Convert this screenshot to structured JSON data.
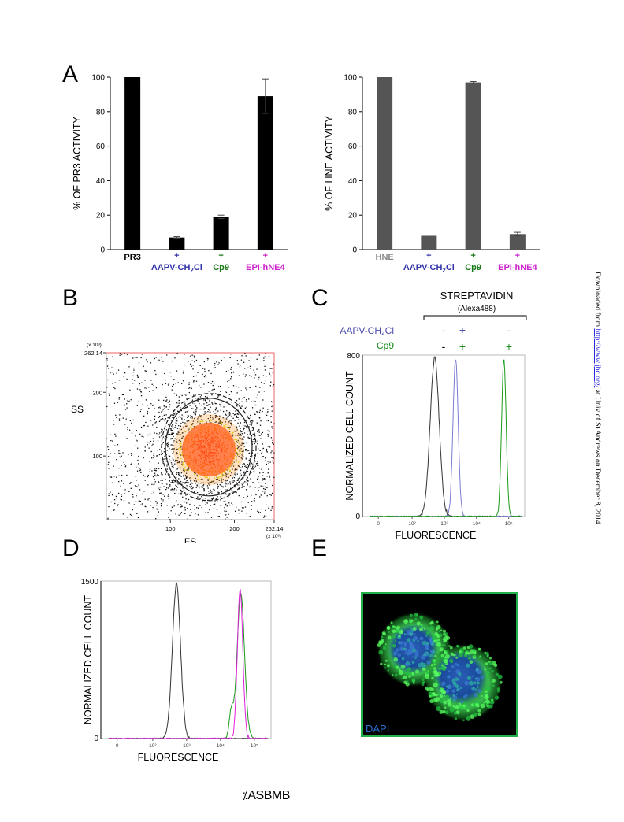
{
  "side_note": {
    "prefix": "Downloaded from",
    "link": "http://www.jbc.org/",
    "suffix": "at Univ of St Andrews on December 8, 2014"
  },
  "footer": {
    "logo_text": "ASBMB",
    "logo_mark": "⁒"
  },
  "panels": {
    "A": "A",
    "B": "B",
    "C": "C",
    "D": "D",
    "E": "E"
  },
  "chart_data": [
    {
      "id": "A-left",
      "type": "bar",
      "ylabel": "% OF PR3 ACTIVITY",
      "ylim": [
        0,
        100
      ],
      "yticks": [
        0,
        20,
        40,
        60,
        80,
        100
      ],
      "categories": [
        "PR3",
        "AAPV-CH2Cl",
        "Cp9",
        "EPI-hNE4"
      ],
      "category_markers": [
        "",
        "+",
        "+",
        "+"
      ],
      "category_colors": [
        "#000000",
        "#3333aa",
        "#1a7a1a",
        "#cc22cc"
      ],
      "values": [
        100,
        7,
        19,
        89
      ],
      "errors": [
        0,
        0.5,
        1,
        10
      ],
      "bar_color": "#000000"
    },
    {
      "id": "A-right",
      "type": "bar",
      "ylabel": "% OF HNE ACTIVITY",
      "ylim": [
        0,
        100
      ],
      "yticks": [
        0,
        20,
        40,
        60,
        80,
        100
      ],
      "categories": [
        "HNE",
        "AAPV-CH2Cl",
        "Cp9",
        "EPI-hNE4"
      ],
      "category_markers": [
        "",
        "+",
        "+",
        "+"
      ],
      "category_colors": [
        "#888888",
        "#3333aa",
        "#1a7a1a",
        "#cc22cc"
      ],
      "values": [
        100,
        8,
        97,
        9
      ],
      "errors": [
        0,
        0,
        0.5,
        1
      ],
      "bar_color": "#555555"
    },
    {
      "id": "B",
      "type": "scatter",
      "xlabel": "FS",
      "ylabel": "SS",
      "x_scale_label": "(x 10³)",
      "y_scale_label": "(x 10³)",
      "xticks": [
        "100",
        "200",
        "262,14"
      ],
      "yticks": [
        "100",
        "200",
        "262,14"
      ],
      "xlim": [
        0,
        262.14
      ],
      "ylim": [
        0,
        262.14
      ],
      "gate_ellipses": 2
    },
    {
      "id": "C",
      "type": "line",
      "header": "STREPTAVIDIN",
      "subheader": "(Alexa488)",
      "row1_label": "AAPV-CH₂Cl",
      "row1_signs": [
        "-",
        "+",
        "-"
      ],
      "row2_label": "Cp9",
      "row2_signs": [
        "-",
        "+",
        "+"
      ],
      "xlabel": "FLUORESCENCE",
      "ylabel": "NORMALIZED CELL COUNT",
      "yticks": [
        "0",
        "800"
      ],
      "xticks": [
        "0",
        "10²",
        "10³",
        "10⁴",
        "10⁵"
      ],
      "series": [
        {
          "color": "#333333",
          "peak_log": 2.7,
          "width": 0.14,
          "height": 1.0
        },
        {
          "color": "#7b7bd0",
          "peak_log": 3.35,
          "width": 0.08,
          "height": 1.0
        },
        {
          "color": "#1a9a1a",
          "peak_log": 4.85,
          "width": 0.07,
          "height": 1.0
        }
      ]
    },
    {
      "id": "D",
      "type": "line",
      "xlabel": "FLUORESCENCE",
      "ylabel": "NORMALIZED CELL COUNT",
      "yticks": [
        "0",
        "1500"
      ],
      "xticks": [
        "0",
        "10²",
        "10³",
        "10⁴",
        "10⁵"
      ],
      "series": [
        {
          "color": "#333333",
          "peak_log": 2.7,
          "width": 0.12,
          "height": 1.0
        },
        {
          "color": "#1a9a1a",
          "peak_log": 4.6,
          "width": 0.11,
          "height": 0.94
        },
        {
          "color": "#dd22dd",
          "peak_log": 4.58,
          "width": 0.08,
          "height": 0.97
        }
      ]
    }
  ],
  "image_E": {
    "label": "DAPI"
  }
}
